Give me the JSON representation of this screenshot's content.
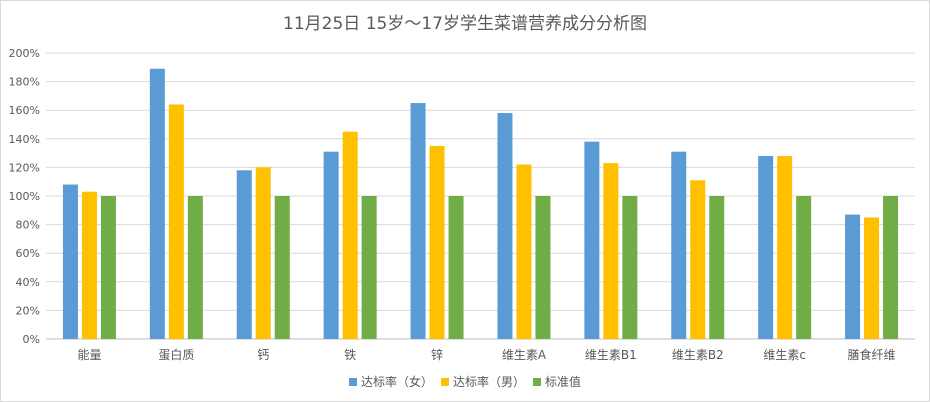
{
  "chart_data": {
    "type": "bar",
    "title": "11月25日 15岁～17岁学生菜谱营养成分分析图",
    "categories": [
      "能量",
      "蛋白质",
      "钙",
      "铁",
      "锌",
      "维生素A",
      "维生素B1",
      "维生素B2",
      "维生素c",
      "膳食纤维"
    ],
    "series": [
      {
        "name": "达标率（女）",
        "color": "#5b9bd5",
        "values": [
          1.08,
          1.89,
          1.18,
          1.31,
          1.65,
          1.58,
          1.38,
          1.31,
          1.28,
          0.87
        ]
      },
      {
        "name": "达标率（男）",
        "color": "#ffc000",
        "values": [
          1.03,
          1.64,
          1.2,
          1.45,
          1.35,
          1.22,
          1.23,
          1.11,
          1.28,
          0.85
        ]
      },
      {
        "name": "标准值",
        "color": "#70ad47",
        "values": [
          1.0,
          1.0,
          1.0,
          1.0,
          1.0,
          1.0,
          1.0,
          1.0,
          1.0,
          1.0
        ]
      }
    ],
    "ylim": [
      0,
      2.0
    ],
    "yticks": [
      "0%",
      "20%",
      "40%",
      "60%",
      "80%",
      "100%",
      "120%",
      "140%",
      "160%",
      "180%",
      "200%"
    ],
    "grid": true,
    "legend_position": "bottom"
  }
}
